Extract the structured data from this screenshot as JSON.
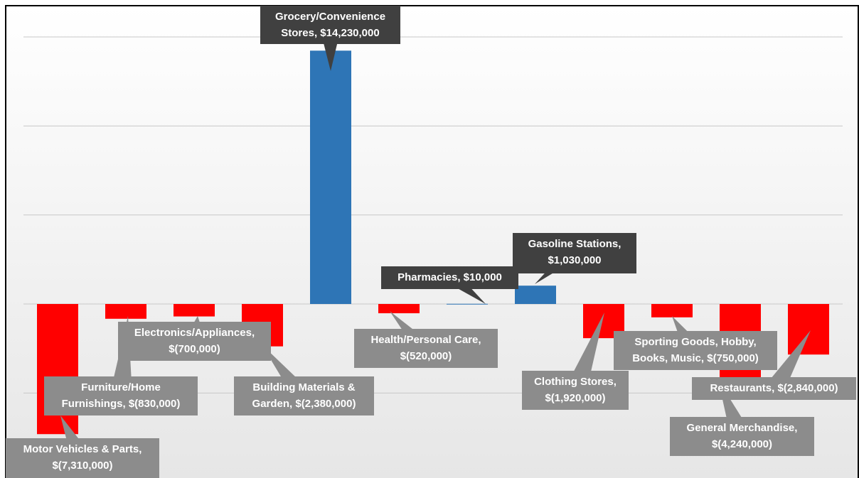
{
  "chart_data": {
    "type": "bar",
    "categories": [
      "Motor Vehicles & Parts",
      "Furniture/Home Furnishings",
      "Electronics/Appliances",
      "Building Materials & Garden",
      "Grocery/Convenience Stores",
      "Health/Personal Care",
      "Pharmacies",
      "Gasoline Stations",
      "Clothing Stores",
      "Sporting Goods, Hobby, Books, Music",
      "General Merchandise",
      "Restaurants"
    ],
    "values": [
      -7310000,
      -830000,
      -700000,
      -2380000,
      14230000,
      -520000,
      10000,
      1030000,
      -1920000,
      -750000,
      -4240000,
      -2840000
    ],
    "value_labels": [
      "$(7,310,000)",
      "$(830,000)",
      "$(700,000)",
      "$(2,380,000)",
      "$14,230,000",
      "$(520,000)",
      "$10,000",
      "$1,030,000",
      "$(1,920,000)",
      "$(750,000)",
      "$(4,240,000)",
      "$(2,840,000)"
    ],
    "positive_color": "#2e75b6",
    "negative_color": "#ff0000",
    "ylim": [
      -9000000,
      15000000
    ],
    "yticks": [
      -5000000,
      0,
      5000000,
      10000000,
      15000000
    ],
    "grid": true
  }
}
